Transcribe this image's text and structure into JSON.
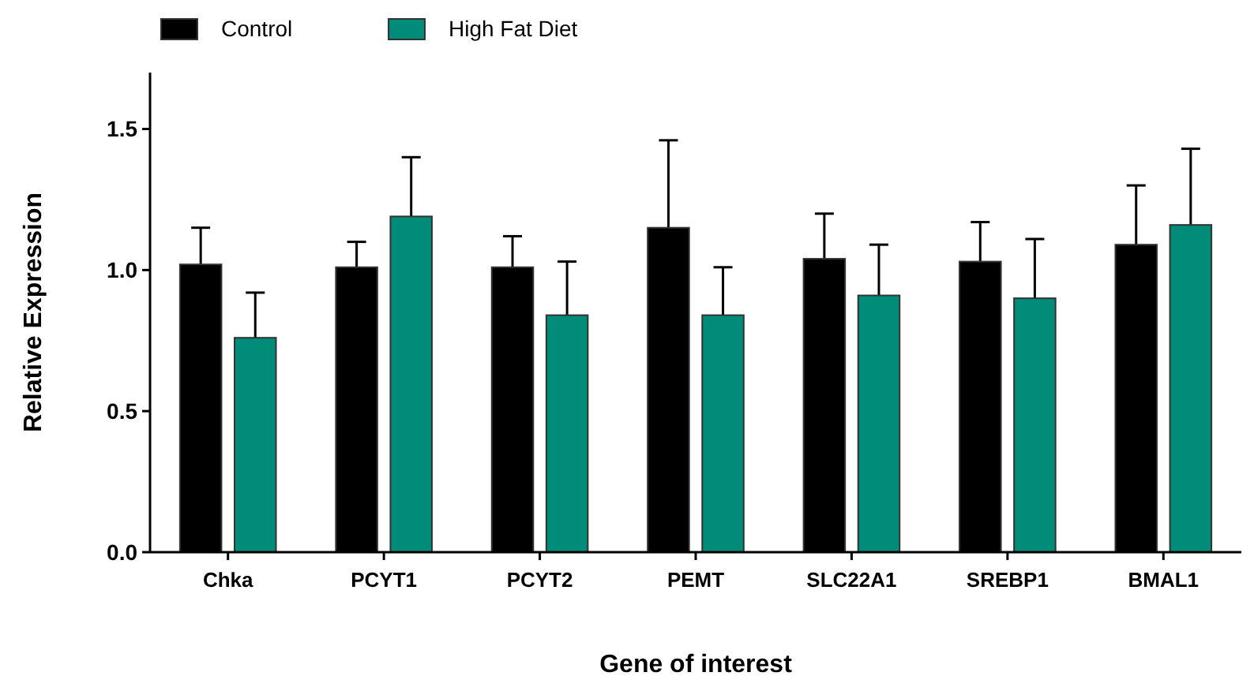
{
  "chart_data": {
    "type": "bar",
    "xlabel": "Gene of interest",
    "ylabel": "Relative Expression",
    "categories": [
      "Chka",
      "PCYT1",
      "PCYT2",
      "PEMT",
      "SLC22A1",
      "SREBP1",
      "BMAL1"
    ],
    "series": [
      {
        "name": "Control",
        "color": "#000000",
        "values": [
          1.02,
          1.01,
          1.01,
          1.15,
          1.04,
          1.03,
          1.09
        ],
        "errors": [
          [
            1.02,
            1.15
          ],
          [
            1.01,
            1.1
          ],
          [
            1.01,
            1.12
          ],
          [
            1.15,
            1.46
          ],
          [
            1.04,
            1.2
          ],
          [
            1.03,
            1.17
          ],
          [
            1.09,
            1.3
          ]
        ]
      },
      {
        "name": "High Fat Diet",
        "color": "#008c78",
        "values": [
          0.76,
          1.19,
          0.84,
          0.84,
          0.91,
          0.9,
          1.16
        ],
        "errors": [
          [
            0.76,
            0.92
          ],
          [
            1.19,
            1.4
          ],
          [
            0.84,
            1.03
          ],
          [
            0.84,
            1.01
          ],
          [
            0.91,
            1.09
          ],
          [
            0.9,
            1.11
          ],
          [
            1.16,
            1.43
          ]
        ]
      }
    ],
    "ylim": [
      0,
      1.7
    ],
    "yticks": [
      {
        "value": 0,
        "label": "0.0"
      },
      {
        "value": 0.5,
        "label": "0.5"
      },
      {
        "value": 1,
        "label": "1.0"
      },
      {
        "value": 1.5,
        "label": "1.5"
      }
    ],
    "grid": false,
    "legend": "top left"
  }
}
